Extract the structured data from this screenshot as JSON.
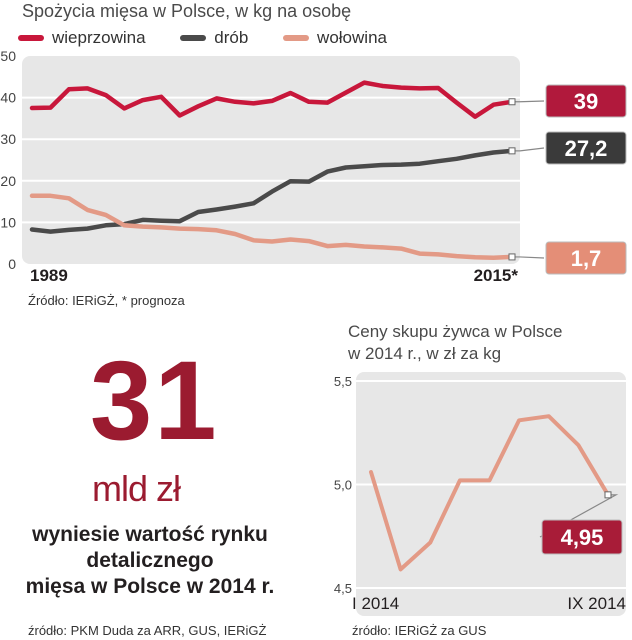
{
  "chart_data": [
    {
      "type": "line",
      "title": "Spożycia mięsa  w Polsce, w kg na osobę",
      "x_start_label": "1989",
      "x_end_label": "2015*",
      "ylim": [
        0,
        50
      ],
      "yticks": [
        "0",
        "10",
        "20",
        "30",
        "40",
        "50"
      ],
      "grid": true,
      "source": "Źródło: IERiGŻ, * prognoza",
      "series": [
        {
          "name": "wieprzowina",
          "color": "#c8173b",
          "end_label": "39",
          "label_bg": "#b1193c",
          "values": [
            37.5,
            37.6,
            42,
            42.2,
            40.6,
            37.4,
            39.4,
            40.2,
            35.7,
            37.9,
            39.8,
            39,
            38.6,
            39.2,
            41.1,
            39,
            38.8,
            41.2,
            43.6,
            42.8,
            42.4,
            42.2,
            42.3,
            38.8,
            35.4,
            38.3,
            39
          ]
        },
        {
          "name": "drób",
          "color": "#4a4a4a",
          "end_label": "27,2",
          "label_bg": "#3a3a3a",
          "values": [
            8.3,
            7.8,
            8.2,
            8.5,
            9.3,
            9.6,
            10.6,
            10.4,
            10.3,
            12.5,
            13.1,
            13.8,
            14.6,
            17.4,
            19.9,
            19.8,
            22.2,
            23.2,
            23.5,
            23.8,
            23.9,
            24.1,
            24.7,
            25.3,
            26.1,
            26.8,
            27.2
          ]
        },
        {
          "name": "wołowina",
          "color": "#e39a86",
          "end_label": "1,7",
          "label_bg": "#e48e77",
          "values": [
            16.4,
            16.4,
            15.8,
            13,
            11.8,
            9.3,
            9,
            8.8,
            8.5,
            8.4,
            8.1,
            7.2,
            5.7,
            5.4,
            5.9,
            5.5,
            4.3,
            4.6,
            4.2,
            4,
            3.7,
            2.5,
            2.3,
            1.9,
            1.6,
            1.5,
            1.7
          ]
        }
      ]
    },
    {
      "type": "line",
      "title": "Ceny skupu żywca w Polsce w 2014 r., w zł za kg",
      "title_lines": [
        "Ceny skupu żywca w Polsce",
        "w 2014 r., w zł za kg"
      ],
      "x_start_label": "I 2014",
      "x_end_label": "IX 2014",
      "ylim": [
        4.5,
        5.5
      ],
      "yticks": [
        "4,5",
        "5,0",
        "5,5"
      ],
      "grid": true,
      "source": "źródło: IERiGŻ za GUS",
      "series": [
        {
          "name": "żywiec",
          "color": "#e39a86",
          "end_label": "4,95",
          "label_bg": "#a81c38",
          "values": [
            5.06,
            4.59,
            4.72,
            5.02,
            5.02,
            5.31,
            5.33,
            5.19,
            4.95
          ]
        }
      ]
    }
  ],
  "highlight": {
    "number": "31",
    "unit": "mld zł",
    "description_lines": [
      "wyniesie wartość rynku",
      "detalicznego",
      "mięsa w Polsce w 2014 r."
    ],
    "source": "źródło: PKM Duda za ARR, GUS, IERiGŻ",
    "color": "#9b1b30"
  }
}
